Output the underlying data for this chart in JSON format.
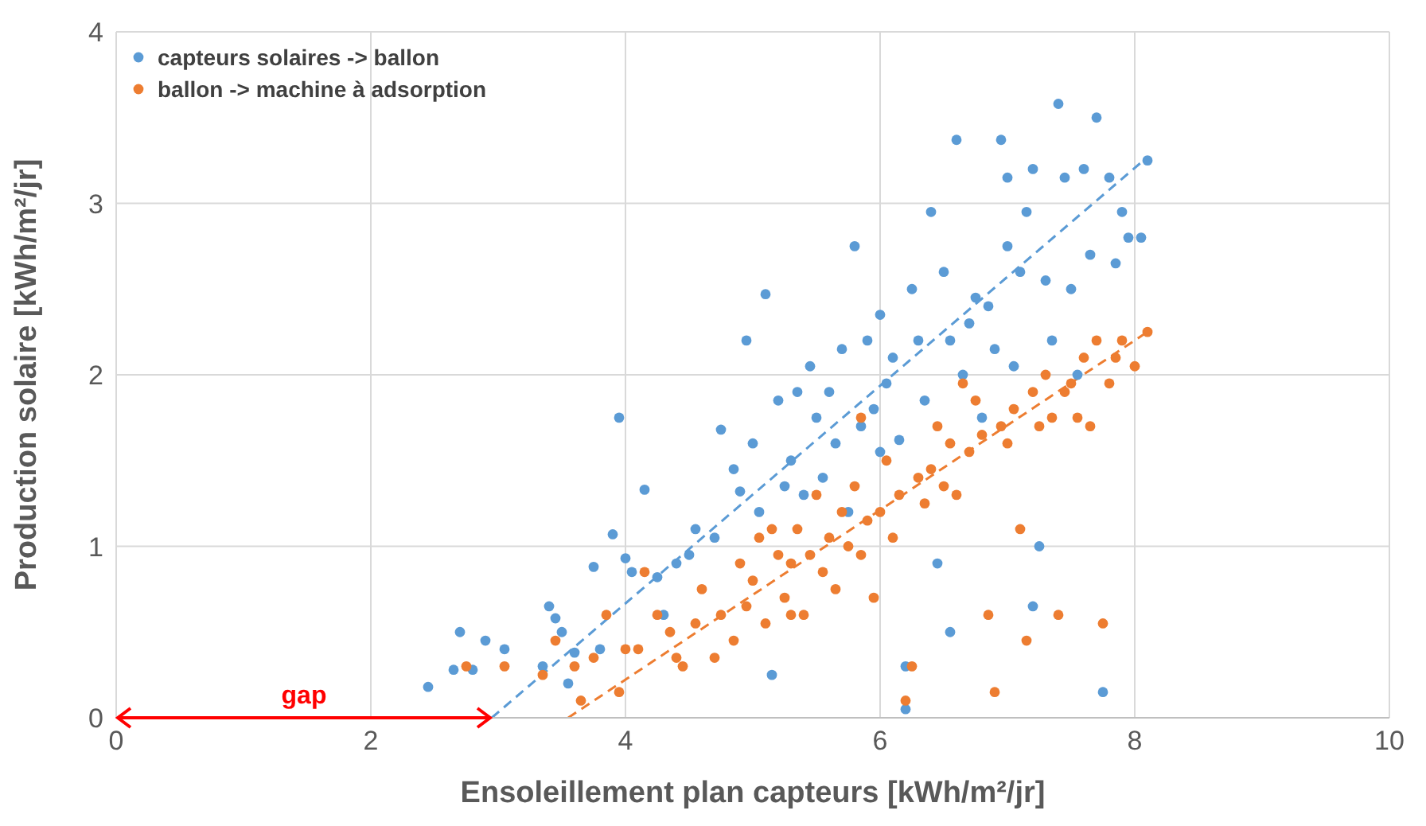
{
  "chart_data": {
    "type": "scatter",
    "xlabel": "Ensoleillement plan capteurs [kWh/m²/jr]",
    "ylabel": "Production solaire [kWh/m²/jr]",
    "xlim": [
      0,
      10
    ],
    "ylim": [
      0,
      4
    ],
    "xticks": [
      0,
      2,
      4,
      6,
      8,
      10
    ],
    "yticks": [
      0,
      1,
      2,
      3,
      4
    ],
    "grid": true,
    "legend": "top left",
    "marker": "circle",
    "annotations": [
      "gap"
    ],
    "series": [
      {
        "name": "capteurs solaires -> ballon",
        "color": "#5b9bd5",
        "x": [
          2.45,
          2.65,
          2.7,
          2.8,
          2.9,
          3.05,
          3.35,
          3.4,
          3.45,
          3.5,
          3.55,
          3.6,
          3.75,
          3.8,
          3.9,
          3.95,
          4.0,
          4.05,
          4.15,
          4.25,
          4.3,
          4.4,
          4.5,
          4.55,
          4.7,
          4.75,
          4.85,
          4.9,
          4.95,
          5.0,
          5.05,
          5.1,
          5.15,
          5.2,
          5.3,
          5.35,
          5.4,
          5.45,
          5.5,
          5.55,
          5.6,
          5.65,
          5.7,
          5.8,
          5.85,
          5.9,
          5.95,
          6.0,
          6.05,
          6.1,
          6.15,
          6.2,
          6.25,
          6.3,
          6.35,
          6.4,
          6.45,
          6.5,
          6.55,
          6.6,
          6.65,
          6.7,
          6.75,
          6.8,
          6.9,
          6.95,
          7.0,
          7.05,
          7.1,
          7.15,
          7.2,
          7.25,
          7.3,
          7.35,
          7.4,
          7.45,
          7.5,
          7.6,
          7.65,
          7.7,
          7.75,
          7.8,
          7.85,
          7.9,
          7.95,
          8.05,
          8.1,
          6.85,
          7.55,
          7.0,
          6.0,
          5.75,
          5.25,
          6.55,
          6.2,
          7.2
        ],
        "values": [
          0.18,
          0.28,
          0.5,
          0.28,
          0.45,
          0.4,
          0.3,
          0.65,
          0.58,
          0.5,
          0.2,
          0.38,
          0.88,
          0.4,
          1.07,
          1.75,
          0.93,
          0.85,
          1.33,
          0.82,
          0.6,
          0.9,
          0.95,
          1.1,
          1.05,
          1.68,
          1.45,
          1.32,
          2.2,
          1.6,
          1.2,
          2.47,
          0.25,
          1.85,
          1.5,
          1.9,
          1.3,
          2.05,
          1.75,
          1.4,
          1.9,
          1.6,
          2.15,
          2.75,
          1.7,
          2.2,
          1.8,
          1.55,
          1.95,
          2.1,
          1.62,
          0.05,
          2.5,
          2.2,
          1.85,
          2.95,
          0.9,
          2.6,
          0.5,
          3.37,
          2.0,
          2.3,
          2.45,
          1.75,
          2.15,
          3.37,
          3.15,
          2.05,
          2.6,
          2.95,
          3.2,
          1.0,
          2.55,
          2.2,
          3.58,
          3.15,
          2.5,
          3.2,
          2.7,
          3.5,
          0.15,
          3.15,
          2.65,
          2.95,
          2.8,
          2.8,
          3.25,
          2.4,
          2.0,
          2.75,
          2.35,
          1.2,
          1.35,
          2.2,
          0.3,
          0.65
        ]
      },
      {
        "name": "ballon -> machine à adsorption",
        "color": "#ed7d31",
        "x": [
          2.75,
          3.05,
          3.35,
          3.45,
          3.6,
          3.65,
          3.75,
          3.85,
          3.95,
          4.0,
          4.1,
          4.15,
          4.25,
          4.35,
          4.45,
          4.55,
          4.6,
          4.7,
          4.75,
          4.85,
          4.9,
          4.95,
          5.0,
          5.05,
          5.1,
          5.15,
          5.2,
          5.25,
          5.3,
          5.35,
          5.4,
          5.45,
          5.5,
          5.55,
          5.6,
          5.65,
          5.7,
          5.75,
          5.8,
          5.85,
          5.9,
          5.95,
          6.0,
          6.05,
          6.1,
          6.15,
          6.2,
          6.25,
          6.3,
          6.35,
          6.4,
          6.45,
          6.5,
          6.55,
          6.6,
          6.7,
          6.75,
          6.8,
          6.85,
          6.9,
          6.95,
          7.0,
          7.05,
          7.1,
          7.15,
          7.2,
          7.25,
          7.3,
          7.35,
          7.4,
          7.45,
          7.5,
          7.55,
          7.6,
          7.7,
          7.75,
          7.8,
          7.85,
          7.9,
          8.0,
          8.1,
          7.65,
          6.65,
          5.85,
          5.3,
          4.4
        ],
        "values": [
          0.3,
          0.3,
          0.25,
          0.45,
          0.3,
          0.1,
          0.35,
          0.6,
          0.15,
          0.4,
          0.4,
          0.85,
          0.6,
          0.5,
          0.3,
          0.55,
          0.75,
          0.35,
          0.6,
          0.45,
          0.9,
          0.65,
          0.8,
          1.05,
          0.55,
          1.1,
          0.95,
          0.7,
          0.9,
          1.1,
          0.6,
          0.95,
          1.3,
          0.85,
          1.05,
          0.75,
          1.2,
          1.0,
          1.35,
          0.95,
          1.15,
          0.7,
          1.2,
          1.5,
          1.05,
          1.3,
          0.1,
          0.3,
          1.4,
          1.25,
          1.45,
          1.7,
          1.35,
          1.6,
          1.3,
          1.55,
          1.85,
          1.65,
          0.6,
          0.15,
          1.7,
          1.6,
          1.8,
          1.1,
          0.45,
          1.9,
          1.7,
          2.0,
          1.75,
          0.6,
          1.9,
          1.95,
          1.75,
          2.1,
          2.2,
          0.55,
          1.95,
          2.1,
          2.2,
          2.05,
          2.25,
          1.7,
          1.95,
          1.75,
          0.6,
          0.35
        ]
      },
      {
        "type": "line",
        "color": "#5b9bd5",
        "line_style": "dashed",
        "marker": "none",
        "x": [
          2.95,
          8.1
        ],
        "values": [
          0,
          3.27
        ]
      },
      {
        "type": "line",
        "color": "#ed7d31",
        "line_style": "dashed",
        "marker": "none",
        "x": [
          3.55,
          8.1
        ],
        "values": [
          0,
          2.25
        ]
      }
    ]
  }
}
